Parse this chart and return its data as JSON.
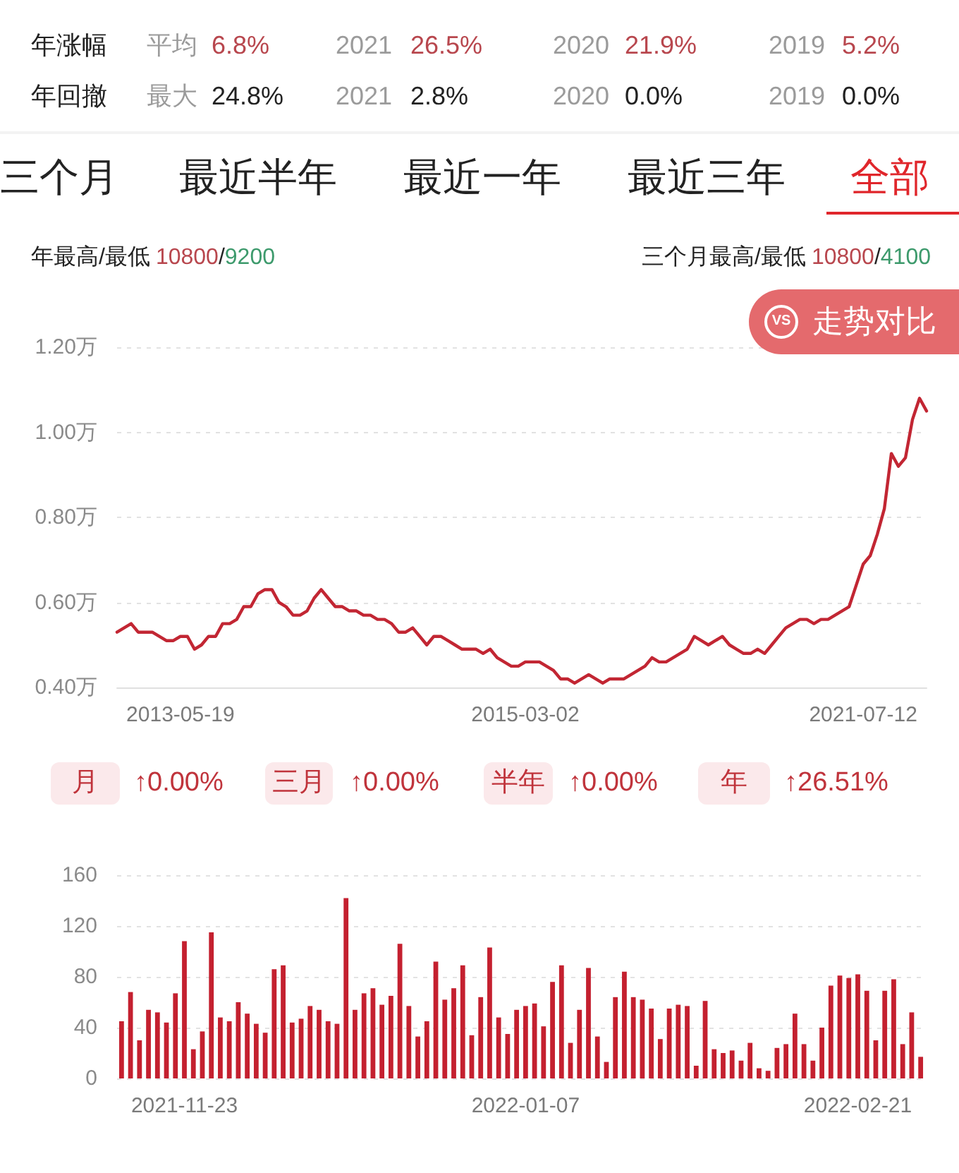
{
  "chart_data": [
    {
      "type": "other",
      "annotations": [
        "年涨幅",
        "平均",
        "6.8%",
        "2021",
        "26.5%",
        "2020",
        "21.9%",
        "2019",
        "5.2%",
        "年回撤",
        "最大",
        "24.8%",
        "2021",
        "2.8%",
        "2020",
        "0.0%",
        "2019",
        "0.0%"
      ]
    },
    {
      "type": "other",
      "annotations": [
        "三个月",
        "最近半年",
        "最近一年",
        "最近三年",
        "全部"
      ]
    },
    {
      "type": "line",
      "annotations": [
        "年最高/最低",
        "10800",
        "/",
        "9200",
        "三个月最高/最低",
        "10800",
        "/",
        "4100",
        "VS",
        "走势对比"
      ],
      "categories": [
        null,
        null,
        null,
        null,
        null,
        null,
        null,
        null,
        null,
        "2013-05-19",
        null,
        null,
        null,
        null,
        null,
        null,
        null,
        null,
        null,
        null,
        null,
        null,
        null,
        null,
        null,
        null,
        null,
        null,
        null,
        null,
        null,
        null,
        null,
        null,
        null,
        null,
        null,
        null,
        null,
        null,
        null,
        null,
        null,
        null,
        null,
        null,
        null,
        null,
        null,
        null,
        null,
        null,
        null,
        null,
        null,
        null,
        null,
        null,
        "2015-03-02",
        null,
        null,
        null,
        null,
        null,
        null,
        null,
        null,
        null,
        null,
        null,
        null,
        null,
        null,
        null,
        null,
        null,
        null,
        null,
        null,
        null,
        null,
        null,
        null,
        null,
        null,
        null,
        null,
        null,
        null,
        null,
        null,
        null,
        null,
        null,
        null,
        null,
        null,
        null,
        null,
        null,
        null,
        null,
        null,
        null,
        null,
        null,
        "2021-07-12",
        null,
        null,
        null,
        null,
        null,
        null,
        null,
        null,
        null
      ],
      "values": [
        0.53,
        0.54,
        0.55,
        0.53,
        0.53,
        0.53,
        0.52,
        0.51,
        0.51,
        0.52,
        0.52,
        0.49,
        0.5,
        0.52,
        0.52,
        0.55,
        0.55,
        0.56,
        0.59,
        0.59,
        0.62,
        0.63,
        0.63,
        0.6,
        0.59,
        0.57,
        0.57,
        0.58,
        0.61,
        0.63,
        0.61,
        0.59,
        0.59,
        0.58,
        0.58,
        0.57,
        0.57,
        0.56,
        0.56,
        0.55,
        0.53,
        0.53,
        0.54,
        0.52,
        0.5,
        0.52,
        0.52,
        0.51,
        0.5,
        0.49,
        0.49,
        0.49,
        0.48,
        0.49,
        0.47,
        0.46,
        0.45,
        0.45,
        0.46,
        0.46,
        0.46,
        0.45,
        0.44,
        0.42,
        0.42,
        0.41,
        0.42,
        0.43,
        0.42,
        0.41,
        0.42,
        0.42,
        0.42,
        0.43,
        0.44,
        0.45,
        0.47,
        0.46,
        0.46,
        0.47,
        0.48,
        0.49,
        0.52,
        0.51,
        0.5,
        0.51,
        0.52,
        0.5,
        0.49,
        0.48,
        0.48,
        0.49,
        0.48,
        0.5,
        0.52,
        0.54,
        0.55,
        0.56,
        0.56,
        0.55,
        0.56,
        0.56,
        0.57,
        0.58,
        0.59,
        0.64,
        0.69,
        0.71,
        0.76,
        0.82,
        0.95,
        0.92,
        0.94,
        1.03,
        1.08,
        1.05
      ],
      "color": "#c22633",
      "ylim": [
        0.4,
        1.2
      ],
      "yticks": [
        {
          "value": 0.4,
          "label": "0.40万"
        },
        {
          "value": 0.6,
          "label": "0.60万"
        },
        {
          "value": 0.8,
          "label": "0.80万"
        },
        {
          "value": 1.0,
          "label": "1.00万"
        },
        {
          "value": 1.2,
          "label": "1.20万"
        }
      ],
      "grid": "y",
      "marker": "none"
    },
    {
      "type": "other",
      "annotations": [
        "月",
        "↑0.00%",
        "三月",
        "↑0.00%",
        "半年",
        "↑0.00%",
        "年",
        "↑26.51%"
      ]
    },
    {
      "type": "bar",
      "categories": [
        null,
        null,
        null,
        null,
        null,
        null,
        null,
        "2021-11-23",
        null,
        null,
        null,
        null,
        null,
        null,
        null,
        null,
        null,
        null,
        null,
        null,
        null,
        null,
        null,
        null,
        null,
        null,
        null,
        null,
        null,
        null,
        null,
        null,
        null,
        null,
        null,
        null,
        null,
        null,
        null,
        null,
        null,
        null,
        null,
        null,
        null,
        "2022-01-07",
        null,
        null,
        null,
        null,
        null,
        null,
        null,
        null,
        null,
        null,
        null,
        null,
        null,
        null,
        null,
        null,
        null,
        null,
        null,
        null,
        null,
        null,
        null,
        null,
        null,
        null,
        null,
        null,
        null,
        null,
        null,
        null,
        null,
        null,
        null,
        null,
        "2022-02-21",
        null,
        null,
        null,
        null,
        null,
        null,
        null
      ],
      "values": [
        45,
        68,
        30,
        54,
        52,
        44,
        67,
        108,
        23,
        37,
        115,
        48,
        45,
        60,
        51,
        43,
        36,
        86,
        89,
        44,
        47,
        57,
        54,
        45,
        43,
        142,
        54,
        67,
        71,
        58,
        65,
        106,
        57,
        33,
        45,
        92,
        62,
        71,
        89,
        34,
        64,
        103,
        48,
        35,
        54,
        57,
        59,
        41,
        76,
        89,
        28,
        54,
        87,
        33,
        13,
        64,
        84,
        64,
        62,
        55,
        31,
        55,
        58,
        57,
        10,
        61,
        23,
        20,
        22,
        14,
        28,
        8,
        6,
        24,
        27,
        51,
        27,
        14,
        40,
        73,
        81,
        79,
        82,
        69,
        30,
        69,
        78,
        27,
        52,
        17
      ],
      "color": "#c4202f",
      "ylim": [
        0,
        160
      ],
      "yticks": [
        0,
        40,
        80,
        120,
        160
      ],
      "grid": "y"
    }
  ]
}
